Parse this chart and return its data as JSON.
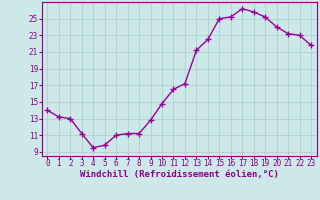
{
  "x": [
    0,
    1,
    2,
    3,
    4,
    5,
    6,
    7,
    8,
    9,
    10,
    11,
    12,
    13,
    14,
    15,
    16,
    17,
    18,
    19,
    20,
    21,
    22,
    23
  ],
  "y": [
    14.0,
    13.2,
    13.0,
    11.2,
    9.5,
    9.8,
    11.0,
    11.2,
    11.2,
    12.8,
    14.8,
    16.5,
    17.2,
    21.2,
    22.5,
    25.0,
    25.2,
    26.2,
    25.8,
    25.2,
    24.0,
    23.2,
    23.0,
    21.8
  ],
  "line_color": "#990099",
  "marker": "+",
  "marker_size": 4,
  "bg_color": "#cce8e8",
  "grid_color": "#aacccc",
  "xlabel": "Windchill (Refroidissement éolien,°C)",
  "xlim": [
    -0.5,
    23.5
  ],
  "ylim": [
    8.5,
    27.0
  ],
  "xticks": [
    0,
    1,
    2,
    3,
    4,
    5,
    6,
    7,
    8,
    9,
    10,
    11,
    12,
    13,
    14,
    15,
    16,
    17,
    18,
    19,
    20,
    21,
    22,
    23
  ],
  "yticks": [
    9,
    11,
    13,
    15,
    17,
    19,
    21,
    23,
    25
  ],
  "tick_color": "#880088",
  "label_color": "#880088",
  "tick_fontsize": 5.5,
  "xlabel_fontsize": 6.5,
  "line_width": 1.0
}
